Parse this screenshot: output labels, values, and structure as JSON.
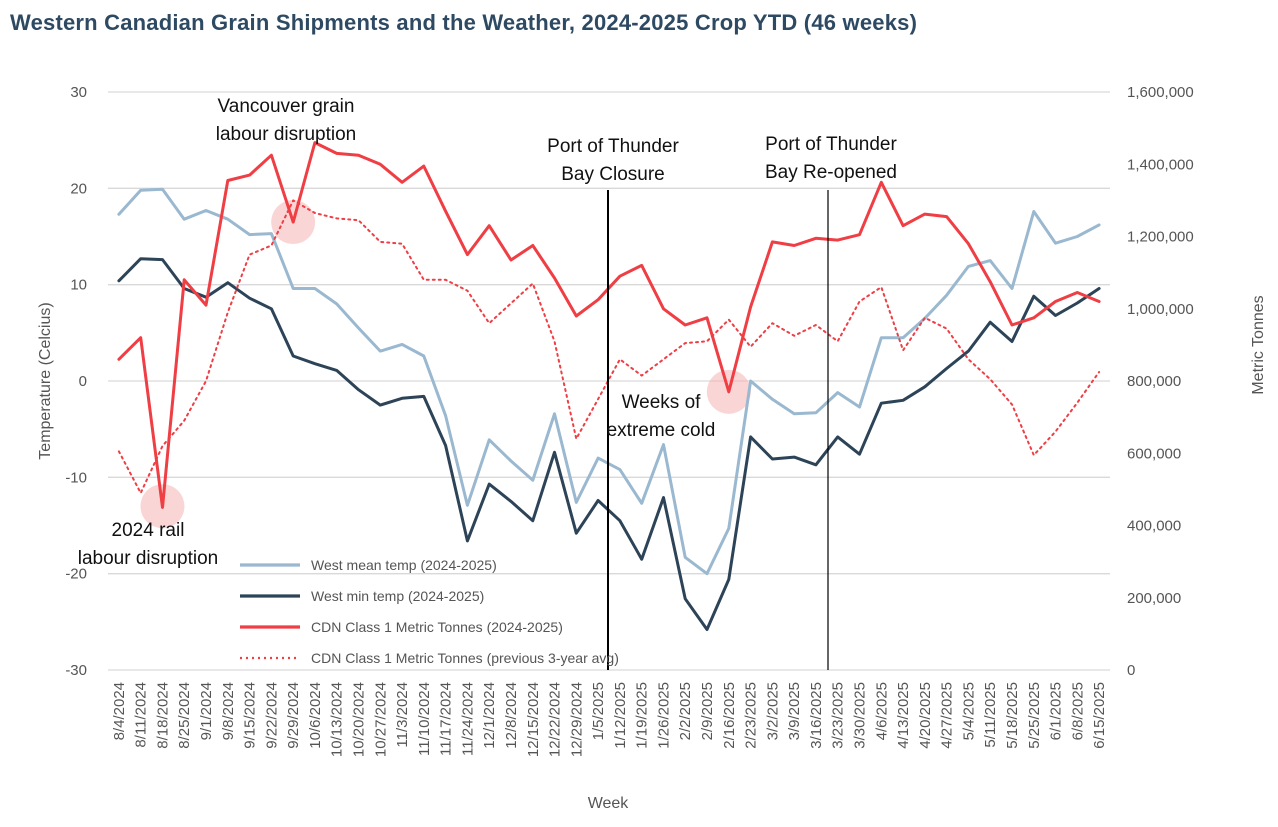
{
  "title": "Western Canadian Grain Shipments and the Weather, 2024-2025 Crop YTD (46 weeks)",
  "colors": {
    "mean_temp": "#9ab8cf",
    "min_temp": "#2d4458",
    "tonnes": "#ef3e44",
    "tonnes_avg": "#ef3e44",
    "highlight": "#f6b3b3",
    "grid": "#d9d9d9"
  },
  "chart_data": {
    "type": "line",
    "xlabel": "Week",
    "ylabel_left": "Temperature (Celcius)",
    "ylabel_right": "Metric Tonnes",
    "ylim_left": [
      -30,
      30
    ],
    "ylim_right": [
      0,
      1600000
    ],
    "yticks_left": [
      "30",
      "20",
      "10",
      "0",
      "-10",
      "-20",
      "-30"
    ],
    "yticks_right": [
      "1,600,000",
      "1,400,000",
      "1,200,000",
      "1,000,000",
      "800,000",
      "600,000",
      "400,000",
      "200,000",
      "0"
    ],
    "grid": true,
    "legend_position": "bottom-left",
    "x": [
      "8/4/2024",
      "8/11/2024",
      "8/18/2024",
      "8/25/2024",
      "9/1/2024",
      "9/8/2024",
      "9/15/2024",
      "9/22/2024",
      "9/29/2024",
      "10/6/2024",
      "10/13/2024",
      "10/20/2024",
      "10/27/2024",
      "11/3/2024",
      "11/10/2024",
      "11/17/2024",
      "11/24/2024",
      "12/1/2024",
      "12/8/2024",
      "12/15/2024",
      "12/22/2024",
      "12/29/2024",
      "1/5/2025",
      "1/12/2025",
      "1/19/2025",
      "1/26/2025",
      "2/2/2025",
      "2/9/2025",
      "2/16/2025",
      "2/23/2025",
      "3/2/2025",
      "3/9/2025",
      "3/16/2025",
      "3/23/2025",
      "3/30/2025",
      "4/6/2025",
      "4/13/2025",
      "4/20/2025",
      "4/27/2025",
      "5/4/2025",
      "5/11/2025",
      "5/18/2025",
      "5/25/2025",
      "6/1/2025",
      "6/8/2025",
      "6/15/2025"
    ],
    "series": [
      {
        "name": "West mean temp (2024-2025)",
        "axis": "left",
        "style": "solid",
        "values": [
          17.3,
          19.8,
          19.9,
          16.8,
          17.7,
          16.8,
          15.2,
          15.3,
          9.6,
          9.6,
          8.0,
          5.5,
          3.1,
          3.8,
          2.6,
          -3.6,
          -12.9,
          -6.1,
          -8.3,
          -10.3,
          -3.4,
          -12.6,
          -8.0,
          -9.2,
          -12.7,
          -6.6,
          -18.3,
          -20.0,
          -15.3,
          0.0,
          -1.9,
          -3.4,
          -3.3,
          -1.2,
          -2.7,
          4.5,
          4.5,
          6.5,
          8.9,
          11.9,
          12.5,
          9.6,
          17.6,
          14.3,
          15.0,
          16.2
        ]
      },
      {
        "name": "West min temp (2024-2025)",
        "axis": "left",
        "style": "solid",
        "values": [
          10.4,
          12.7,
          12.6,
          9.6,
          8.7,
          10.2,
          8.6,
          7.5,
          2.6,
          1.8,
          1.1,
          -0.9,
          -2.5,
          -1.8,
          -1.6,
          -6.7,
          -16.6,
          -10.7,
          -12.5,
          -14.5,
          -7.4,
          -15.8,
          -12.4,
          -14.5,
          -18.5,
          -12.1,
          -22.6,
          -25.8,
          -20.6,
          -5.8,
          -8.1,
          -7.9,
          -8.7,
          -5.8,
          -7.6,
          -2.3,
          -2.0,
          -0.6,
          1.3,
          3.1,
          6.1,
          4.1,
          8.8,
          6.8,
          8.1,
          9.6
        ]
      },
      {
        "name": "CDN Class 1 Metric Tonnes (2024-2025)",
        "axis": "right",
        "style": "solid",
        "values": [
          860000,
          920000,
          450000,
          1080000,
          1010000,
          1355000,
          1370000,
          1425000,
          1240000,
          1460000,
          1430000,
          1425000,
          1400000,
          1350000,
          1395000,
          1270000,
          1150000,
          1230000,
          1135000,
          1175000,
          1085000,
          980000,
          1025000,
          1090000,
          1120000,
          1000000,
          955000,
          975000,
          770000,
          1005000,
          1185000,
          1175000,
          1195000,
          1190000,
          1205000,
          1350000,
          1230000,
          1262000,
          1255000,
          1180000,
          1075000,
          955000,
          975000,
          1020000,
          1045000,
          1020000
        ]
      },
      {
        "name": "CDN Class 1 Metric Tonnes (previous 3-year avg)",
        "axis": "right",
        "style": "dotted",
        "values": [
          605000,
          490000,
          620000,
          690000,
          800000,
          990000,
          1150000,
          1175000,
          1300000,
          1265000,
          1250000,
          1245000,
          1185000,
          1180000,
          1080000,
          1080000,
          1050000,
          960000,
          1015000,
          1070000,
          910000,
          640000,
          750000,
          860000,
          815000,
          860000,
          905000,
          910000,
          970000,
          895000,
          960000,
          925000,
          955000,
          910000,
          1020000,
          1060000,
          885000,
          975000,
          945000,
          860000,
          805000,
          735000,
          595000,
          660000,
          740000,
          825000
        ]
      }
    ],
    "annotations": [
      {
        "text_lines": [
          "Vancouver grain",
          "labour disruption"
        ],
        "week": "9/29/2024"
      },
      {
        "text_lines": [
          "Port of Thunder",
          "Bay Closure"
        ],
        "week": "1/12/2025"
      },
      {
        "text_lines": [
          "Port of Thunder",
          "Bay Re-opened"
        ],
        "week": "3/23/2025"
      },
      {
        "text_lines": [
          "Weeks of",
          "extreme cold"
        ],
        "week": "2/16/2025"
      },
      {
        "text_lines": [
          "2024 rail",
          "labour disruption"
        ],
        "week": "8/18/2024"
      }
    ]
  }
}
